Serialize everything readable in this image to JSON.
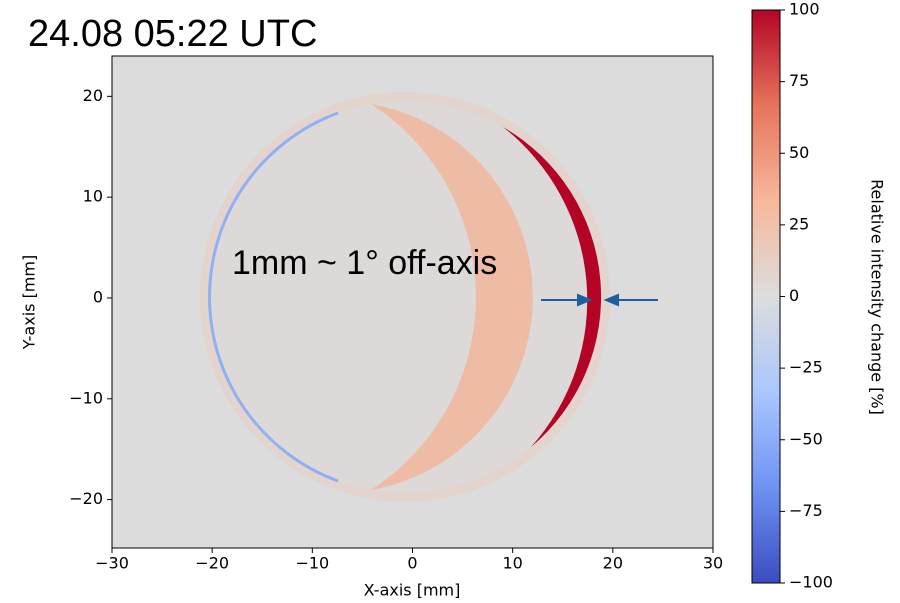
{
  "chart_data": {
    "type": "image",
    "title": "24.08 05:22 UTC",
    "annotation": "1mm ~ 1° off-axis",
    "xlabel": "X-axis [mm]",
    "ylabel": "Y-axis [mm]",
    "xlim": [
      -30,
      30
    ],
    "ylim": [
      -24.8,
      24
    ],
    "xticks": [
      {
        "value": -30,
        "label": "−30"
      },
      {
        "value": -20,
        "label": "−20"
      },
      {
        "value": -10,
        "label": "−10"
      },
      0,
      10,
      20,
      30
    ],
    "yticks": [
      {
        "value": -20,
        "label": "−20"
      },
      {
        "value": -10,
        "label": "−10"
      },
      0,
      10,
      20
    ],
    "colorbar": {
      "label": "Relative intensity change [%]",
      "lim": [
        -100,
        100
      ],
      "ticks": [
        {
          "value": -100,
          "label": "−100"
        },
        {
          "value": -75,
          "label": "−75"
        },
        {
          "value": -50,
          "label": "−50"
        },
        {
          "value": -25,
          "label": "−25"
        },
        0,
        25,
        50,
        75,
        100
      ],
      "colors": [
        "#3b4cc0",
        "#6f92f3",
        "#aac7fd",
        "#dddddd",
        "#f7b89c",
        "#e7745b",
        "#b40426"
      ]
    }
  }
}
